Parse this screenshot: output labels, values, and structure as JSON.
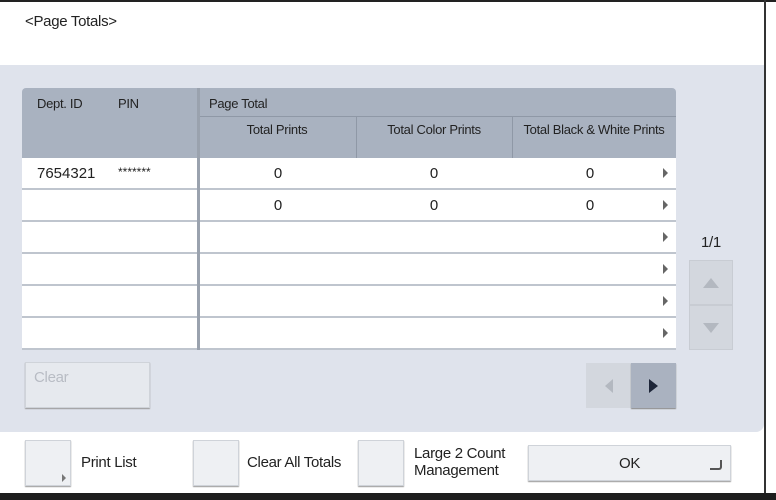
{
  "title": "<Page Totals>",
  "table": {
    "headers": {
      "dept_id": "Dept. ID",
      "pin": "PIN",
      "page_total": "Page Total",
      "total_prints": "Total Prints",
      "total_color": "Total Color Prints",
      "total_bw": "Total Black & White Prints"
    },
    "rows": [
      {
        "dept_id": "7654321",
        "pin": "*******",
        "total": "0",
        "color": "0",
        "bw": "0"
      },
      {
        "dept_id": "",
        "pin": "",
        "total": "0",
        "color": "0",
        "bw": "0"
      },
      {
        "dept_id": "",
        "pin": "",
        "total": "",
        "color": "",
        "bw": ""
      },
      {
        "dept_id": "",
        "pin": "",
        "total": "",
        "color": "",
        "bw": ""
      },
      {
        "dept_id": "",
        "pin": "",
        "total": "",
        "color": "",
        "bw": ""
      },
      {
        "dept_id": "",
        "pin": "",
        "total": "",
        "color": "",
        "bw": ""
      }
    ]
  },
  "pager": {
    "page": "1/1"
  },
  "buttons": {
    "clear": "Clear",
    "print_list": "Print List",
    "clear_all_totals": "Clear All Totals",
    "large2_line1": "Large 2 Count",
    "large2_line2": "Management",
    "ok": "OK"
  },
  "colors": {
    "panel": "#dfe3ec",
    "header": "#a9b2c0",
    "disabled_text": "#b8bcc4"
  }
}
